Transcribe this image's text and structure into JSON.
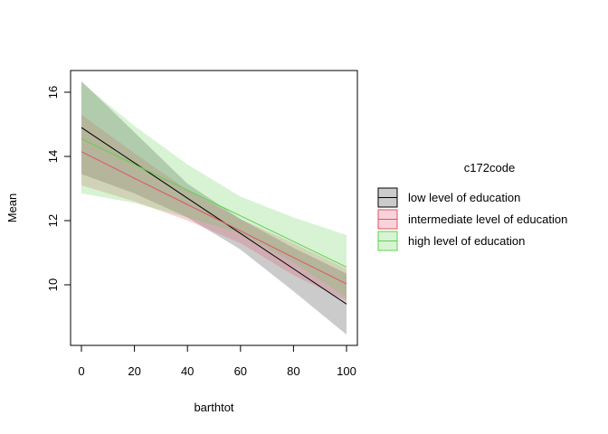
{
  "chart_data": {
    "type": "line",
    "title": "",
    "xlabel": "barthtot",
    "ylabel": "Mean",
    "xlim": [
      0,
      100
    ],
    "ylim": [
      8.3,
      16.7
    ],
    "xticks": [
      "0",
      "20",
      "40",
      "60",
      "80",
      "100"
    ],
    "yticks": [
      "10",
      "12",
      "14",
      "16"
    ],
    "grid": false,
    "legend": {
      "title": "c172code",
      "position": "right",
      "entries": [
        "low level of education",
        "intermediate level of education",
        "high level of education"
      ]
    },
    "x": [
      0,
      20,
      40,
      60,
      80,
      100
    ],
    "series": [
      {
        "name": "low level of education",
        "color": "#000000",
        "fill": "rgba(140,140,140,0.45)",
        "values": [
          14.9,
          13.8,
          12.7,
          11.6,
          10.5,
          9.4
        ],
        "lower": [
          13.45,
          12.85,
          12.1,
          11.1,
          9.8,
          8.45
        ],
        "upper": [
          16.35,
          14.75,
          13.15,
          12.05,
          11.15,
          10.35
        ]
      },
      {
        "name": "intermediate level of education",
        "color": "#DF536B",
        "fill": "rgba(223,83,107,0.25)",
        "values": [
          14.15,
          13.32,
          12.5,
          11.68,
          10.85,
          10.03
        ],
        "lower": [
          13.1,
          12.6,
          12.0,
          11.3,
          10.3,
          9.5
        ],
        "upper": [
          15.3,
          14.1,
          12.95,
          12.05,
          11.3,
          10.5
        ]
      },
      {
        "name": "high level of education",
        "color": "#61D04F",
        "fill": "rgba(97,208,79,0.25)",
        "values": [
          14.55,
          13.75,
          12.95,
          12.15,
          11.35,
          10.55
        ],
        "lower": [
          12.85,
          12.55,
          12.1,
          11.6,
          10.7,
          9.6
        ],
        "upper": [
          16.3,
          14.95,
          13.75,
          12.75,
          12.1,
          11.55
        ]
      }
    ]
  }
}
